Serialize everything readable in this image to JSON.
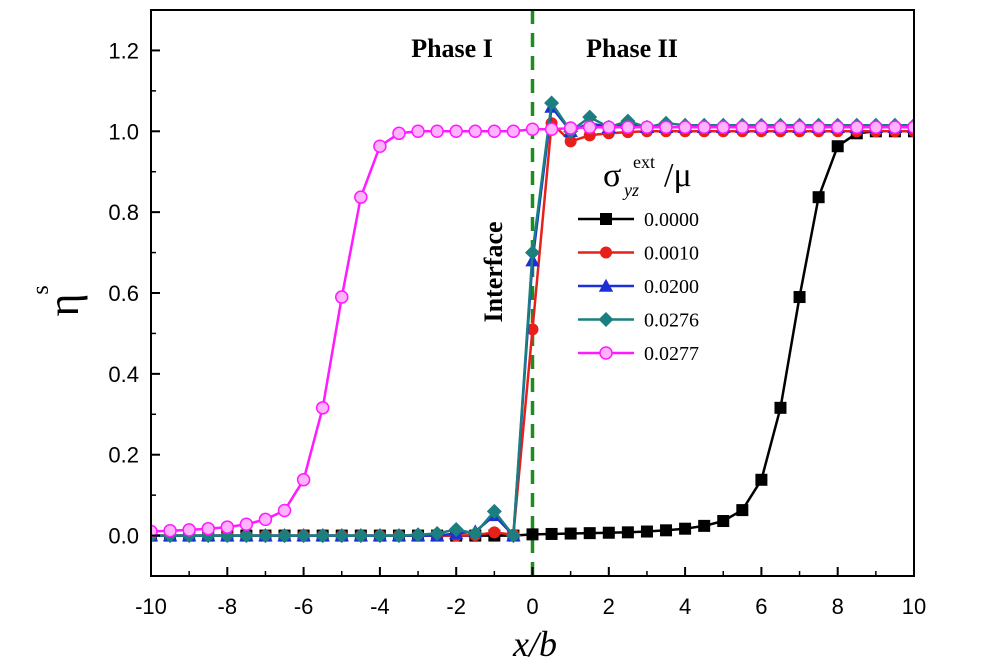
{
  "chart_data": {
    "type": "line",
    "title": "",
    "xlabel": "x/b",
    "ylabel": {
      "base": "η",
      "sup": "s"
    },
    "xlim": [
      -10,
      10
    ],
    "ylim": [
      -0.1,
      1.3
    ],
    "xticks": [
      -10,
      -8,
      -6,
      -4,
      -2,
      0,
      2,
      4,
      6,
      8,
      10
    ],
    "xtick_labels": [
      "-10",
      "-8",
      "-6",
      "-4",
      "-2",
      "0",
      "2",
      "4",
      "6",
      "8",
      "10"
    ],
    "yticks": [
      0.0,
      0.2,
      0.4,
      0.6,
      0.8,
      1.0,
      1.2
    ],
    "ytick_labels": [
      "0.0",
      "0.2",
      "0.4",
      "0.6",
      "0.8",
      "1.0",
      "1.2"
    ],
    "grid": false,
    "legend_position": "right",
    "legend_title": {
      "base": "σ",
      "sup": "ext",
      "sub": "yz",
      "suffix": "/μ"
    },
    "annotations": [
      {
        "id": "phase-1",
        "text": "Phase I",
        "x": -2.5,
        "y": 1.22
      },
      {
        "id": "phase-2",
        "text": "Phase II",
        "x": 2.6,
        "y": 1.22
      },
      {
        "id": "interface",
        "text": "Interface",
        "x": -1.0,
        "y": 0.66,
        "rotation": -90
      }
    ],
    "vline": {
      "x": 0,
      "color": "#1e8c1e",
      "style": "dashed"
    },
    "series": [
      {
        "name": "0.0000",
        "color": "#000000",
        "marker": "square",
        "x": [
          -10,
          -9.5,
          -9,
          -8.5,
          -8,
          -7.5,
          -7,
          -6.5,
          -6,
          -5.5,
          -5,
          -4.5,
          -4,
          -3.5,
          -3,
          -2.5,
          -2,
          -1.5,
          -1,
          -0.5,
          0,
          0.5,
          1,
          1.5,
          2,
          2.5,
          3,
          3.5,
          4,
          4.5,
          5,
          5.5,
          6,
          6.5,
          7,
          7.5,
          8,
          8.5,
          9,
          9.5,
          10
        ],
        "y": [
          0,
          0,
          0,
          0,
          0,
          0,
          0,
          0,
          0,
          0,
          0,
          0,
          0,
          0,
          0,
          0,
          0,
          0,
          0,
          0,
          0.003,
          0.004,
          0.005,
          0.006,
          0.007,
          0.008,
          0.01,
          0.013,
          0.017,
          0.024,
          0.036,
          0.063,
          0.138,
          0.316,
          0.59,
          0.837,
          0.963,
          0.995,
          1.0,
          1.0,
          1.0
        ]
      },
      {
        "name": "0.0010",
        "color": "#e8201c",
        "marker": "circle",
        "x": [
          -10,
          -9.5,
          -9,
          -8.5,
          -8,
          -7.5,
          -7,
          -6.5,
          -6,
          -5.5,
          -5,
          -4.5,
          -4,
          -3.5,
          -3,
          -2.5,
          -2,
          -1.5,
          -1,
          -0.5,
          0,
          0.5,
          1,
          1.5,
          2,
          2.5,
          3,
          3.5,
          4,
          4.5,
          5,
          5.5,
          6,
          6.5,
          7,
          7.5,
          8,
          8.5,
          9,
          9.5,
          10
        ],
        "y": [
          0,
          0,
          0,
          0,
          0,
          0,
          0,
          0,
          0,
          0,
          0,
          0,
          0,
          0,
          0,
          0,
          0,
          0.001,
          0.008,
          0.002,
          0.51,
          1.02,
          0.975,
          0.99,
          0.995,
          0.998,
          1.0,
          1.0,
          1.0,
          1.0,
          1.0,
          1.0,
          1.0,
          1.0,
          1.0,
          1.0,
          1.0,
          1.0,
          1.0,
          1.0,
          1.0
        ]
      },
      {
        "name": "0.0200",
        "color": "#1f2fd6",
        "marker": "triangle",
        "x": [
          -10,
          -9.5,
          -9,
          -8.5,
          -8,
          -7.5,
          -7,
          -6.5,
          -6,
          -5.5,
          -5,
          -4.5,
          -4,
          -3.5,
          -3,
          -2.5,
          -2,
          -1.5,
          -1,
          -0.5,
          0,
          0.5,
          1,
          1.5,
          2,
          2.5,
          3,
          3.5,
          4,
          4.5,
          5,
          5.5,
          6,
          6.5,
          7,
          7.5,
          8,
          8.5,
          9,
          9.5,
          10
        ],
        "y": [
          0,
          0,
          0,
          0,
          0,
          0,
          0,
          0,
          0,
          0,
          0,
          0,
          0,
          0,
          0,
          0,
          0.005,
          0.01,
          0.05,
          0.0,
          0.68,
          1.06,
          1.0,
          1.02,
          1.01,
          1.02,
          1.01,
          1.01,
          1.01,
          1.01,
          1.01,
          1.01,
          1.01,
          1.01,
          1.01,
          1.01,
          1.01,
          1.01,
          1.01,
          1.01,
          1.01
        ]
      },
      {
        "name": "0.0276",
        "color": "#1b7f7f",
        "marker": "diamond",
        "x": [
          -10,
          -9.5,
          -9,
          -8.5,
          -8,
          -7.5,
          -7,
          -6.5,
          -6,
          -5.5,
          -5,
          -4.5,
          -4,
          -3.5,
          -3,
          -2.5,
          -2,
          -1.5,
          -1,
          -0.5,
          0,
          0.5,
          1,
          1.5,
          2,
          2.5,
          3,
          3.5,
          4,
          4.5,
          5,
          5.5,
          6,
          6.5,
          7,
          7.5,
          8,
          8.5,
          9,
          9.5,
          10
        ],
        "y": [
          0,
          0,
          0,
          0,
          0,
          0,
          0,
          0,
          0,
          0,
          0,
          0,
          0,
          0,
          0.002,
          0.005,
          0.015,
          0.005,
          0.06,
          0.0,
          0.7,
          1.07,
          1.0,
          1.035,
          1.01,
          1.025,
          1.01,
          1.02,
          1.015,
          1.015,
          1.015,
          1.015,
          1.015,
          1.015,
          1.015,
          1.015,
          1.015,
          1.015,
          1.015,
          1.015,
          1.015
        ]
      },
      {
        "name": "0.0277",
        "color": "#ff1aff",
        "marker": "circle-open",
        "x": [
          -10,
          -9.5,
          -9,
          -8.5,
          -8,
          -7.5,
          -7,
          -6.5,
          -6,
          -5.5,
          -5,
          -4.5,
          -4,
          -3.5,
          -3,
          -2.5,
          -2,
          -1.5,
          -1,
          -0.5,
          0,
          0.5,
          1,
          1.5,
          2,
          2.5,
          3,
          3.5,
          4,
          4.5,
          5,
          5.5,
          6,
          6.5,
          7,
          7.5,
          8,
          8.5,
          9,
          9.5,
          10
        ],
        "y": [
          0.01,
          0.012,
          0.014,
          0.017,
          0.021,
          0.028,
          0.04,
          0.062,
          0.138,
          0.316,
          0.59,
          0.837,
          0.963,
          0.995,
          1.0,
          1.0,
          1.0,
          1.0,
          1.0,
          1.0,
          1.005,
          1.005,
          1.008,
          1.01,
          1.01,
          1.01,
          1.01,
          1.01,
          1.01,
          1.01,
          1.01,
          1.01,
          1.01,
          1.01,
          1.01,
          1.01,
          1.01,
          1.01,
          1.01,
          1.01,
          1.01
        ]
      }
    ]
  }
}
